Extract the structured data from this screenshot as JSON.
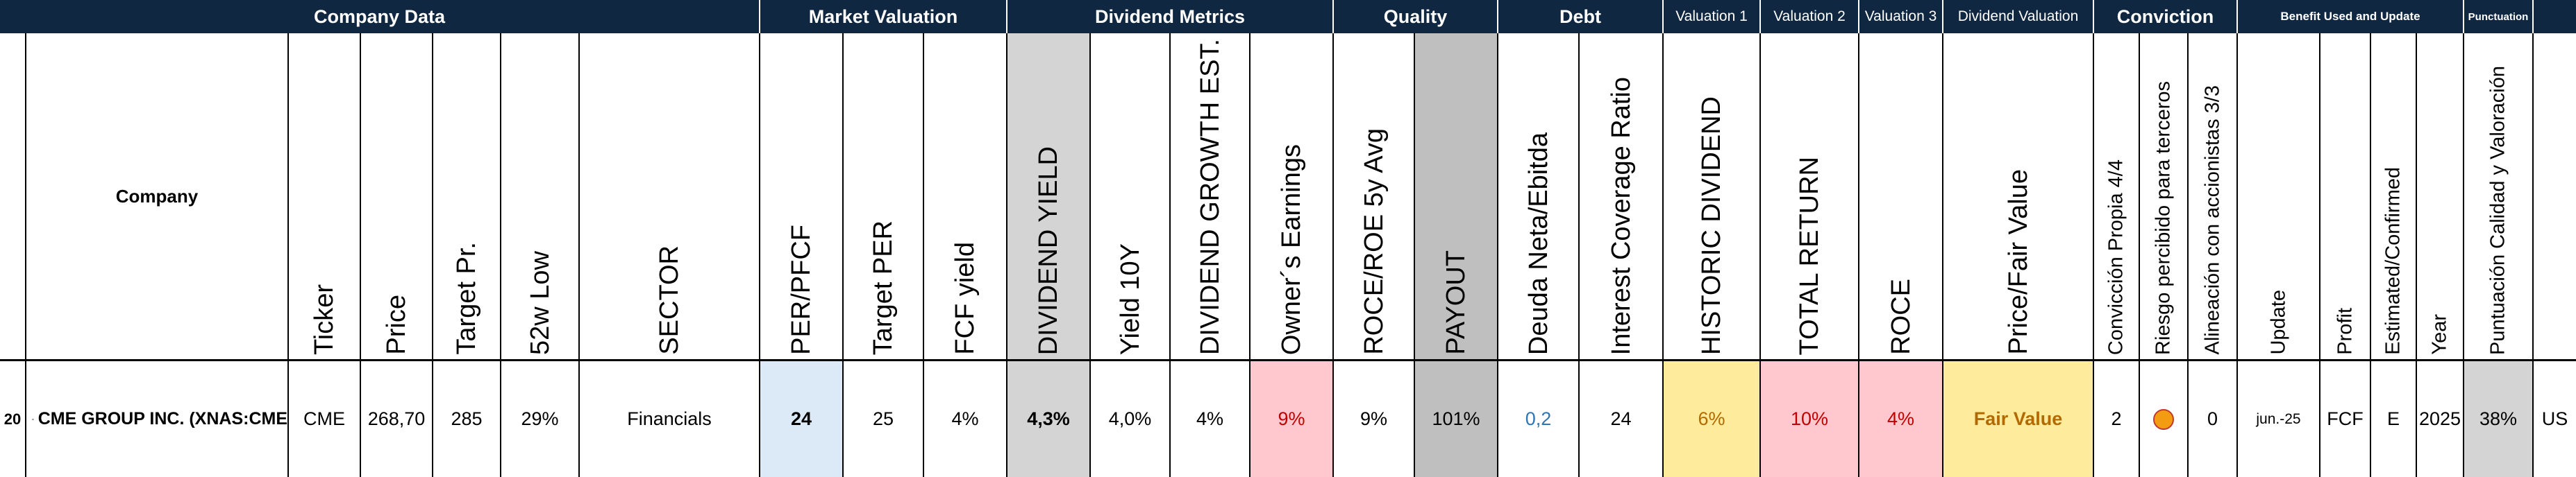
{
  "groups": {
    "company_data": "Company Data",
    "market_valuation": "Market Valuation",
    "dividend_metrics": "Dividend Metrics",
    "quality": "Quality",
    "debt": "Debt",
    "valuation1": "Valuation 1",
    "valuation2": "Valuation 2",
    "valuation3": "Valuation 3",
    "dividend_valuation": "Dividend Valuation",
    "conviction": "Conviction",
    "benefit": "Benefit Used and Update",
    "punctuation": "Punctuation"
  },
  "headers": {
    "company": "Company",
    "ticker": "Ticker",
    "price": "Price",
    "target_pr": "Target Pr.",
    "low52": "52w Low",
    "sector": "SECTOR",
    "per_pfcf": "PER/PFCF",
    "target_per": "Target PER",
    "fcf_yield": "FCF yield",
    "dividend_yield": "DIVIDEND YIELD",
    "yield10y": "Yield 10Y",
    "div_growth": "DIVIDEND GROWTH EST.",
    "owners_earnings": "Owner´s Earnings",
    "roce_roe": "ROCE/ROE 5y Avg",
    "payout": "PAYOUT",
    "deuda": "Deuda Neta/Ebitda",
    "interest": "Interest Coverage Ratio",
    "historic_div": "HISTORIC DIVIDEND",
    "total_return": "TOTAL RETURN",
    "roce": "ROCE",
    "price_fv": "Price/Fair Value",
    "conv_propia": "Convicción Propia 4/4",
    "riesgo": "Riesgo percibido para terceros",
    "alineacion": "Alineación con accionistas 3/3",
    "update": "Update",
    "profit": "Profit",
    "estimated": "Estimated/Confirmed",
    "year": "Year",
    "puntuacion": "Puntuación Calidad y Valoración"
  },
  "row": {
    "index": "20",
    "company": "CME GROUP INC. (XNAS:CME",
    "company_icon": "bank-icon",
    "ticker": "CME",
    "price": "268,70",
    "target_pr": "285",
    "low52": "29%",
    "sector": "Financials",
    "per_pfcf": "24",
    "target_per": "25",
    "fcf_yield": "4%",
    "dividend_yield": "4,3%",
    "yield10y": "4,0%",
    "div_growth": "4%",
    "owners_earnings": "9%",
    "roce_roe": "9%",
    "payout": "101%",
    "deuda": "0,2",
    "interest": "24",
    "historic_div": "6%",
    "total_return": "10%",
    "roce": "4%",
    "price_fv": "Fair Value",
    "conv_propia": "2",
    "riesgo_icon": "orange-dot-icon",
    "alineacion": "0",
    "update": "jun.-25",
    "profit": "FCF",
    "estimated": "E",
    "year": "2025",
    "puntuacion": "38%",
    "country": "US"
  },
  "colors": {
    "header_band": "#0f2741",
    "highlight_blue": "#dceaf7",
    "highlight_gray": "#d4d4d4",
    "highlight_pink": "#ffc7ce",
    "highlight_yellow": "#ffeb9c",
    "text_red": "#c00000",
    "text_blue": "#2e75b6"
  }
}
